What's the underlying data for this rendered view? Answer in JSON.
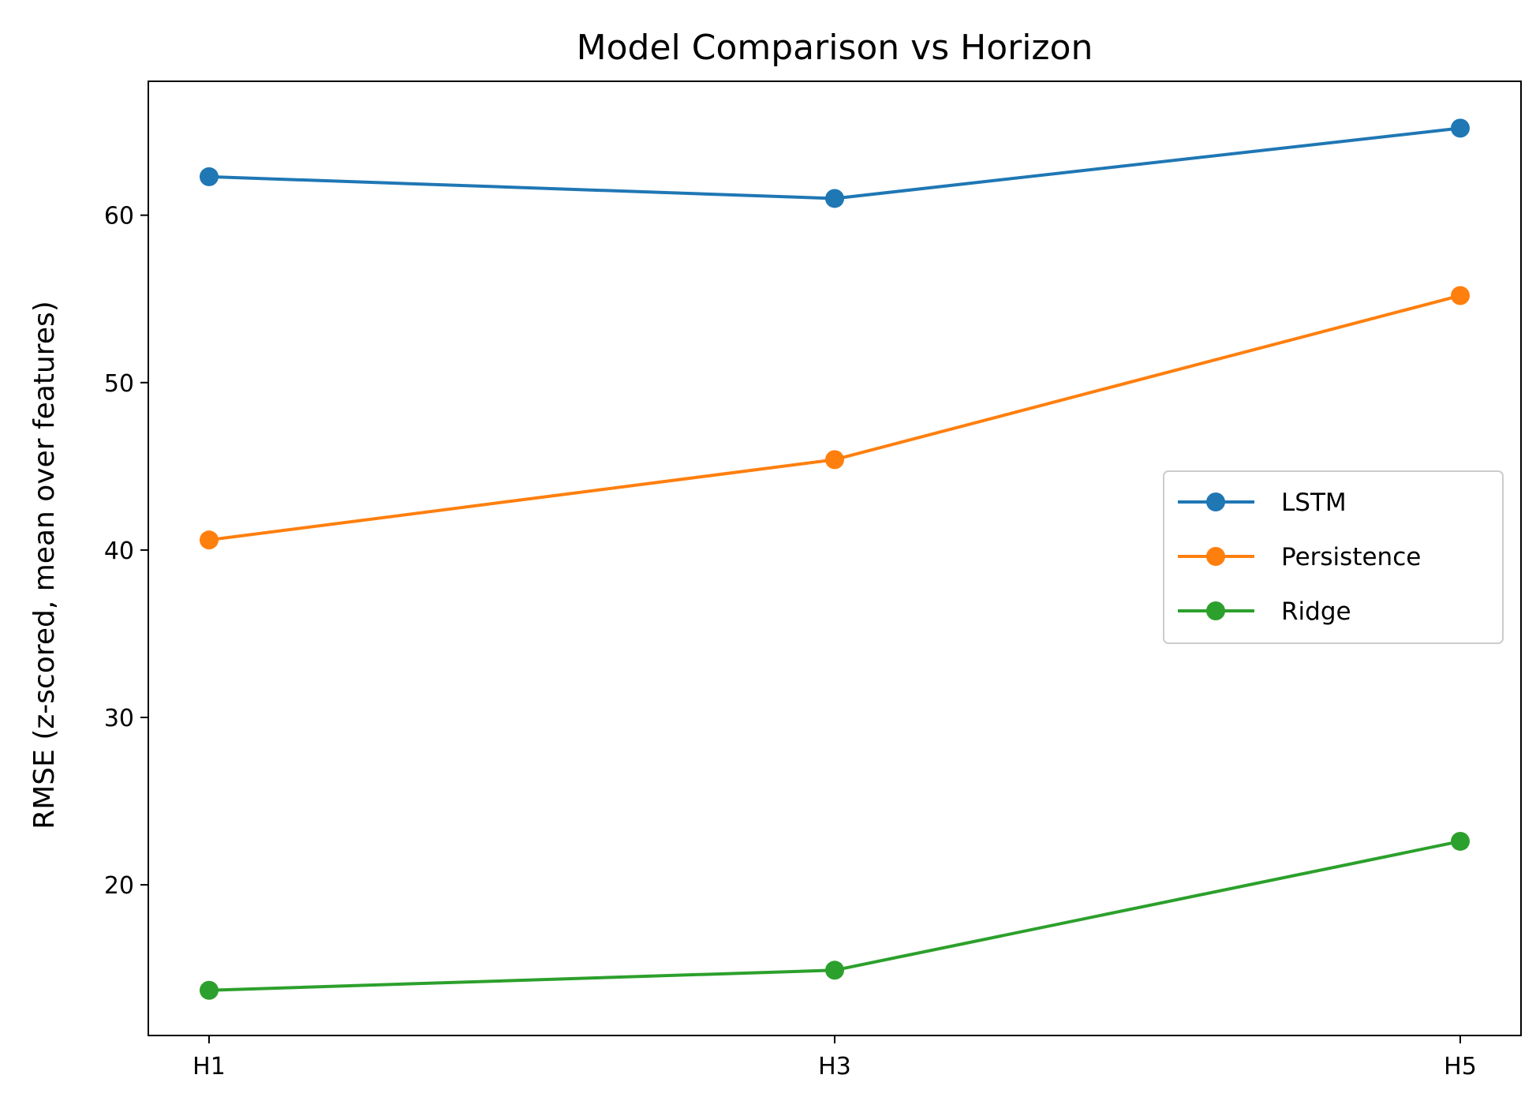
{
  "chart_data": {
    "type": "line",
    "title": "Model Comparison vs Horizon",
    "xlabel": "",
    "ylabel": "RMSE (z-scored, mean over features)",
    "categories": [
      "H1",
      "H3",
      "H5"
    ],
    "ylim": [
      11,
      68
    ],
    "yticks": [
      20,
      30,
      40,
      50,
      60
    ],
    "grid": false,
    "legend_position": "center-right",
    "series": [
      {
        "name": "LSTM",
        "color": "#1f77b4",
        "values": [
          62.3,
          61.0,
          65.2
        ]
      },
      {
        "name": "Persistence",
        "color": "#ff7f0e",
        "values": [
          40.6,
          45.4,
          55.2
        ]
      },
      {
        "name": "Ridge",
        "color": "#2ca02c",
        "values": [
          13.7,
          14.9,
          22.6
        ]
      }
    ]
  }
}
